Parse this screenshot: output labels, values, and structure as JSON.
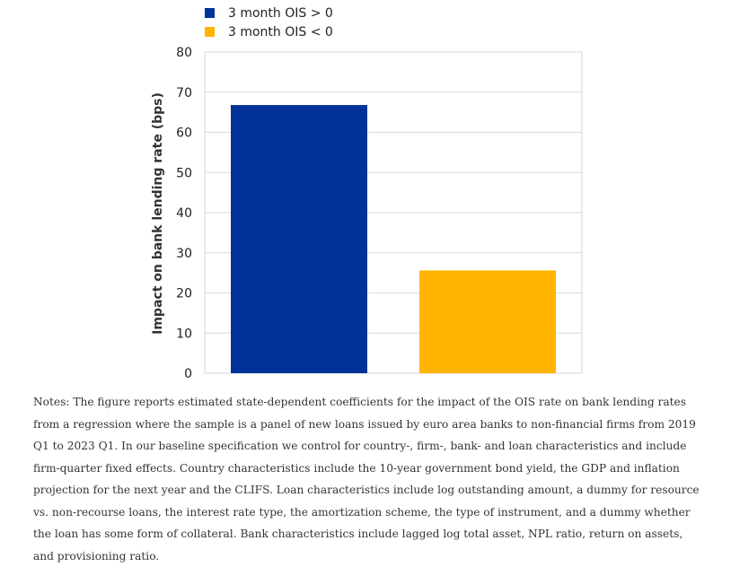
{
  "chart_data": {
    "type": "bar",
    "categories": [
      "3 month OIS > 0",
      "3 month OIS < 0"
    ],
    "values": [
      66.8,
      25.6
    ],
    "colors": [
      "#003299",
      "#FFB400"
    ],
    "ylabel": "Impact on bank lending rate (bps)",
    "ylim": [
      0,
      80
    ],
    "yticks": [
      0,
      10,
      20,
      30,
      40,
      50,
      60,
      70,
      80
    ],
    "grid": true,
    "legend_position": "top"
  },
  "legend": [
    {
      "label": "3 month OIS > 0",
      "color": "#003299"
    },
    {
      "label": "3 month OIS < 0",
      "color": "#FFB400"
    }
  ],
  "notes": "Notes: The figure reports estimated state-dependent coefficients for the impact of the OIS rate on bank lending rates from a regression where the sample is a panel of new loans issued by euro area banks to non-financial firms from 2019 Q1 to 2023 Q1. In our baseline specification we control for country-, firm-, bank- and loan characteristics and include firm-quarter fixed effects. Country characteristics include the 10-year government bond yield, the GDP and inflation projection for the next year and the CLIFS. Loan characteristics include log outstanding amount, a dummy for resource vs. non-recourse loans, the interest rate type, the amortization scheme, the type of instrument, and a dummy whether the loan has some form of collateral. Bank characteristics include lagged log total asset, NPL ratio, return on assets, and provisioning ratio."
}
